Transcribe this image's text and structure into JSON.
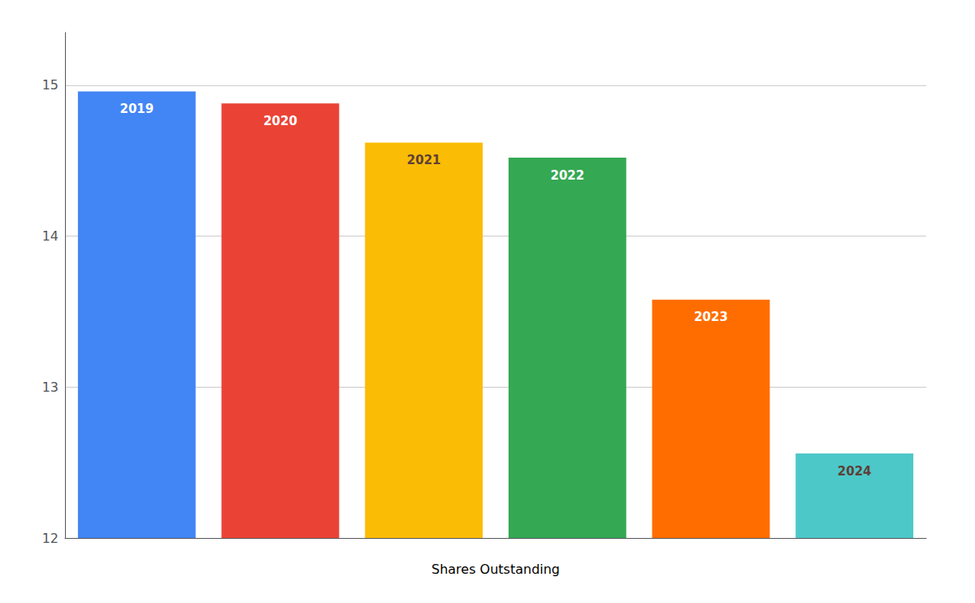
{
  "chart_data": {
    "type": "bar",
    "categories": [
      "2019",
      "2020",
      "2021",
      "2022",
      "2023",
      "2024"
    ],
    "values": [
      14.96,
      14.88,
      14.62,
      14.52,
      13.58,
      12.56
    ],
    "colors": [
      "#4285F4",
      "#EA4335",
      "#FBBC05",
      "#34A853",
      "#FF6D00",
      "#4DC8C8"
    ],
    "xlabel": "Shares Outstanding",
    "ylim": [
      12,
      15.35
    ],
    "yticks": [
      12,
      13,
      14,
      15
    ],
    "grid": true,
    "tick_labels": "y"
  }
}
